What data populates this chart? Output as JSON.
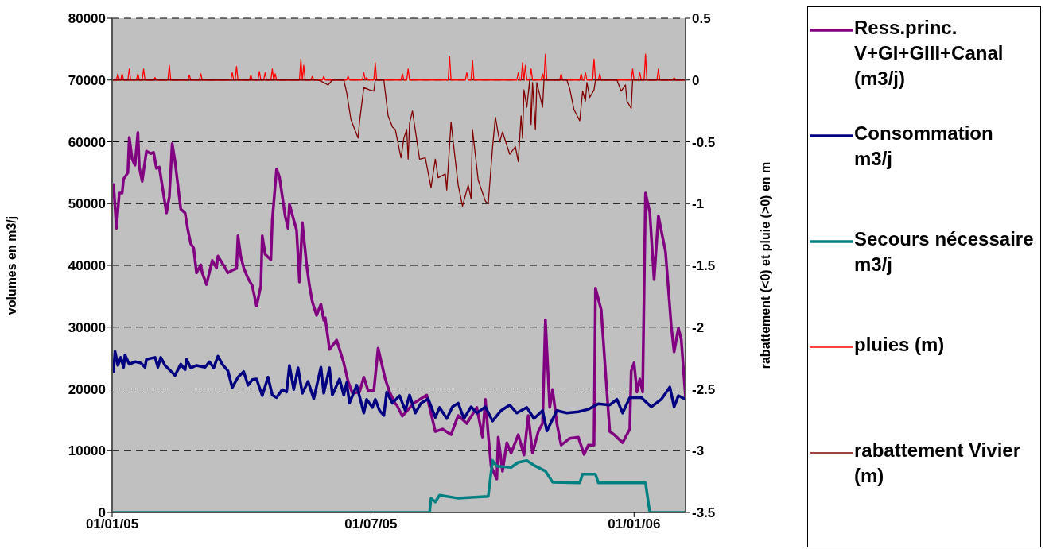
{
  "chart_data": {
    "type": "line",
    "xlim": [
      "2005-01-01",
      "2006-02-06"
    ],
    "xticks": [
      {
        "value": "2005-01-01",
        "label": "01/01/05"
      },
      {
        "value": "2005-07-01",
        "label": "01/07/05"
      },
      {
        "value": "2006-01-01",
        "label": "01/01/06"
      }
    ],
    "ylim": [
      0,
      80000
    ],
    "yticks": [
      0,
      10000,
      20000,
      30000,
      40000,
      50000,
      60000,
      70000,
      80000
    ],
    "y2lim": [
      -3.5,
      0.5
    ],
    "y2ticks": [
      -3.5,
      -3,
      -2.5,
      -2,
      -1.5,
      -1,
      -0.5,
      0,
      0.5
    ],
    "ylabel": "volumes en m3/j",
    "y2label": "rabattement (<0) et pluie (>0) en m",
    "grid": "y",
    "legend": "right",
    "series": [
      {
        "name": "Ress.princ. V+GI+GIII+Canal (m3/j)",
        "color": "#800080",
        "x": [
          "2005-01-02",
          "2005-01-04",
          "2005-01-06",
          "2005-01-08",
          "2005-01-09",
          "2005-01-12",
          "2005-01-13",
          "2005-01-15",
          "2005-01-17",
          "2005-01-19",
          "2005-01-20",
          "2005-01-22",
          "2005-01-25",
          "2005-01-28",
          "2005-01-30",
          "2005-02-01",
          "2005-02-03",
          "2005-02-08",
          "2005-02-10",
          "2005-02-12",
          "2005-02-14",
          "2005-02-18",
          "2005-02-21",
          "2005-02-23",
          "2005-02-25",
          "2005-02-27",
          "2005-03-01",
          "2005-03-04",
          "2005-03-05",
          "2005-03-08",
          "2005-03-12",
          "2005-03-15",
          "2005-03-16",
          "2005-03-21",
          "2005-03-23",
          "2005-03-26",
          "2005-03-29",
          "2005-03-30",
          "2005-04-01",
          "2005-04-03",
          "2005-04-06",
          "2005-04-09",
          "2005-04-12",
          "2005-04-15",
          "2005-04-16",
          "2005-04-18",
          "2005-04-22",
          "2005-04-23",
          "2005-04-26",
          "2005-04-28",
          "2005-05-02",
          "2005-05-04",
          "2005-05-05",
          "2005-05-07",
          "2005-05-10",
          "2005-05-12",
          "2005-05-14",
          "2005-05-17",
          "2005-05-19",
          "2005-05-21",
          "2005-05-24",
          "2005-05-27",
          "2005-05-29",
          "2005-05-30",
          "2005-06-02",
          "2005-06-07",
          "2005-06-12",
          "2005-06-15",
          "2005-06-18",
          "2005-06-23",
          "2005-06-26",
          "2005-06-29",
          "2005-07-03",
          "2005-07-06",
          "2005-07-11",
          "2005-07-14",
          "2005-07-18",
          "2005-07-19",
          "2005-07-23",
          "2005-07-31",
          "2005-08-09",
          "2005-08-15",
          "2005-08-20",
          "2005-08-26",
          "2005-08-31",
          "2005-09-06",
          "2005-09-13",
          "2005-09-17",
          "2005-09-19",
          "2005-09-21",
          "2005-09-23",
          "2005-09-27",
          "2005-09-28",
          "2005-10-01",
          "2005-10-04",
          "2005-10-07",
          "2005-10-12",
          "2005-10-16",
          "2005-10-19",
          "2005-10-22",
          "2005-10-26",
          "2005-10-29",
          "2005-10-31",
          "2005-11-03",
          "2005-11-05",
          "2005-11-08",
          "2005-11-11",
          "2005-11-17",
          "2005-11-23",
          "2005-11-27",
          "2005-11-30",
          "2005-12-04",
          "2005-12-05",
          "2005-12-09",
          "2005-12-13",
          "2005-12-15",
          "2005-12-18",
          "2005-12-24",
          "2005-12-29",
          "2005-12-30",
          "2006-01-01",
          "2006-01-03",
          "2006-01-05",
          "2006-01-07",
          "2006-01-09",
          "2006-01-12",
          "2006-01-15",
          "2006-01-18",
          "2006-01-23",
          "2006-01-27",
          "2006-01-29",
          "2006-02-01",
          "2006-02-03",
          "2006-02-06"
        ],
        "values": [
          53100,
          46000,
          51700,
          51700,
          54000,
          55000,
          60700,
          57200,
          56200,
          61500,
          55900,
          53600,
          58500,
          58100,
          58300,
          55700,
          55900,
          48500,
          51100,
          59700,
          56800,
          49100,
          48500,
          45700,
          43500,
          42800,
          38800,
          40100,
          38800,
          36900,
          40800,
          39600,
          41500,
          39600,
          38800,
          39200,
          39500,
          44800,
          41400,
          39600,
          37900,
          36700,
          33400,
          36700,
          44800,
          41800,
          40900,
          47300,
          55600,
          54300,
          48000,
          46000,
          49900,
          48200,
          45700,
          37300,
          46900,
          40100,
          36700,
          34100,
          31900,
          33700,
          31100,
          31500,
          26400,
          27900,
          24200,
          21200,
          19300,
          19500,
          21900,
          19700,
          19700,
          26600,
          21600,
          19500,
          17600,
          17400,
          15600,
          17700,
          19000,
          13100,
          13500,
          12600,
          15700,
          14400,
          17000,
          12200,
          18300,
          12600,
          7500,
          5400,
          12200,
          6700,
          11300,
          9600,
          12600,
          9300,
          15700,
          9600,
          13100,
          14400,
          31200,
          17000,
          19900,
          14400,
          10900,
          12000,
          12200,
          9400,
          10900,
          10900,
          36300,
          32800,
          19500,
          13100,
          12600,
          11300,
          13500,
          22900,
          24200,
          19500,
          21600,
          19500,
          51700,
          48600,
          37700,
          48000,
          42200,
          30200,
          26000,
          29800,
          28000,
          18600
        ]
      },
      {
        "name": "Consommation m3/j",
        "color": "#000080",
        "x": [
          "2005-01-02",
          "2005-01-03",
          "2005-01-05",
          "2005-01-07",
          "2005-01-09",
          "2005-01-10",
          "2005-01-13",
          "2005-01-17",
          "2005-01-21",
          "2005-01-24",
          "2005-01-25",
          "2005-01-31",
          "2005-02-02",
          "2005-02-04",
          "2005-02-07",
          "2005-02-11",
          "2005-02-14",
          "2005-02-18",
          "2005-02-21",
          "2005-02-22",
          "2005-02-25",
          "2005-03-01",
          "2005-03-07",
          "2005-03-10",
          "2005-03-13",
          "2005-03-16",
          "2005-03-19",
          "2005-03-23",
          "2005-03-26",
          "2005-03-30",
          "2005-04-03",
          "2005-04-06",
          "2005-04-09",
          "2005-04-12",
          "2005-04-16",
          "2005-04-20",
          "2005-04-23",
          "2005-04-26",
          "2005-04-30",
          "2005-05-03",
          "2005-05-05",
          "2005-05-08",
          "2005-05-11",
          "2005-05-14",
          "2005-05-18",
          "2005-05-22",
          "2005-05-27",
          "2005-05-29",
          "2005-06-02",
          "2005-06-04",
          "2005-06-09",
          "2005-06-12",
          "2005-06-14",
          "2005-06-16",
          "2005-06-21",
          "2005-06-26",
          "2005-06-28",
          "2005-07-02",
          "2005-07-04",
          "2005-07-07",
          "2005-07-10",
          "2005-07-12",
          "2005-07-16",
          "2005-07-21",
          "2005-07-25",
          "2005-07-28",
          "2005-08-01",
          "2005-08-05",
          "2005-08-10",
          "2005-08-15",
          "2005-08-18",
          "2005-08-23",
          "2005-08-27",
          "2005-08-31",
          "2005-09-04",
          "2005-09-09",
          "2005-09-13",
          "2005-09-19",
          "2005-09-24",
          "2005-09-30",
          "2005-10-06",
          "2005-10-11",
          "2005-10-18",
          "2005-10-23",
          "2005-10-29",
          "2005-11-01",
          "2005-11-08",
          "2005-11-15",
          "2005-11-23",
          "2005-11-30",
          "2005-12-07",
          "2005-12-15",
          "2005-12-20",
          "2005-12-24",
          "2005-12-29",
          "2006-01-06",
          "2006-01-13",
          "2006-01-20",
          "2006-01-26",
          "2006-01-29",
          "2006-02-01",
          "2006-02-06"
        ],
        "values": [
          22800,
          26100,
          23800,
          25100,
          23500,
          25500,
          24000,
          24400,
          24200,
          23500,
          24800,
          25100,
          23500,
          25100,
          23800,
          22900,
          22200,
          24000,
          23100,
          24800,
          23400,
          23800,
          23500,
          24400,
          23400,
          25300,
          24000,
          22900,
          20200,
          21900,
          22800,
          20600,
          21500,
          21600,
          18900,
          21900,
          19000,
          18600,
          19900,
          19500,
          23800,
          19900,
          23400,
          19300,
          21200,
          18400,
          23500,
          19300,
          23400,
          19000,
          21600,
          19000,
          21000,
          17700,
          20600,
          16100,
          18300,
          17000,
          18300,
          16500,
          15700,
          19500,
          17700,
          18900,
          16500,
          19000,
          16100,
          17700,
          18400,
          15400,
          17000,
          15200,
          17100,
          17700,
          15200,
          17100,
          16100,
          17100,
          14800,
          16500,
          17400,
          16100,
          17000,
          15200,
          16500,
          13200,
          16500,
          16100,
          16300,
          16700,
          17600,
          17400,
          18300,
          16100,
          18600,
          18600,
          17100,
          18300,
          20300,
          17100,
          18900,
          18300
        ]
      },
      {
        "name": "Secours nécessaire m3/j",
        "color": "#008080",
        "x": [
          "2005-01-01",
          "2005-08-11",
          "2005-08-12",
          "2005-08-15",
          "2005-08-18",
          "2005-08-31",
          "2005-09-21",
          "2005-09-24",
          "2005-09-27",
          "2005-10-07",
          "2005-10-12",
          "2005-10-18",
          "2005-10-24",
          "2005-10-31",
          "2005-11-05",
          "2005-11-24",
          "2005-11-26",
          "2005-12-05",
          "2005-12-07",
          "2006-01-09",
          "2006-01-12",
          "2006-02-06"
        ],
        "values": [
          0,
          0,
          2300,
          1700,
          2800,
          2300,
          2600,
          8400,
          7500,
          7300,
          8100,
          8400,
          7500,
          6700,
          4900,
          4800,
          6200,
          6200,
          4800,
          4800,
          0,
          0
        ]
      },
      {
        "name": "pluies (m)",
        "color": "#ff0000",
        "axis": "y2",
        "x": [
          "2005-01-01",
          "2005-01-04",
          "2005-01-05",
          "2005-01-06",
          "2005-01-07",
          "2005-01-08",
          "2005-01-09",
          "2005-01-12",
          "2005-01-13",
          "2005-01-14",
          "2005-01-18",
          "2005-01-19",
          "2005-01-20",
          "2005-01-22",
          "2005-01-23",
          "2005-01-24",
          "2005-01-30",
          "2005-01-31",
          "2005-02-01",
          "2005-02-09",
          "2005-02-10",
          "2005-02-11",
          "2005-02-23",
          "2005-02-24",
          "2005-02-25",
          "2005-03-03",
          "2005-03-04",
          "2005-03-05",
          "2005-03-25",
          "2005-03-26",
          "2005-03-27",
          "2005-03-28",
          "2005-03-29",
          "2005-03-30",
          "2005-04-07",
          "2005-04-08",
          "2005-04-09",
          "2005-04-13",
          "2005-04-14",
          "2005-04-15",
          "2005-04-17",
          "2005-04-18",
          "2005-04-19",
          "2005-04-22",
          "2005-04-23",
          "2005-04-24",
          "2005-04-25",
          "2005-04-26",
          "2005-05-12",
          "2005-05-13",
          "2005-05-14",
          "2005-05-15",
          "2005-05-16",
          "2005-05-20",
          "2005-05-21",
          "2005-05-22",
          "2005-05-28",
          "2005-05-29",
          "2005-05-30",
          "2005-06-14",
          "2005-06-15",
          "2005-06-16",
          "2005-06-25",
          "2005-06-26",
          "2005-06-27",
          "2005-06-28",
          "2005-06-29",
          "2005-07-03",
          "2005-07-04",
          "2005-07-05",
          "2005-07-22",
          "2005-07-23",
          "2005-07-24",
          "2005-07-26",
          "2005-07-27",
          "2005-07-28",
          "2005-08-24",
          "2005-08-25",
          "2005-08-26",
          "2005-09-05",
          "2005-09-06",
          "2005-09-07",
          "2005-09-09",
          "2005-09-10",
          "2005-09-11",
          "2005-10-11",
          "2005-10-12",
          "2005-10-13",
          "2005-10-14",
          "2005-10-15",
          "2005-10-16",
          "2005-10-17",
          "2005-10-18",
          "2005-10-20",
          "2005-10-21",
          "2005-10-22",
          "2005-10-28",
          "2005-10-29",
          "2005-10-30",
          "2005-10-31",
          "2005-11-01",
          "2005-11-10",
          "2005-11-11",
          "2005-11-12",
          "2005-11-24",
          "2005-11-25",
          "2005-11-26",
          "2005-11-27",
          "2005-11-28",
          "2005-11-29",
          "2005-12-03",
          "2005-12-04",
          "2005-12-05",
          "2005-12-07",
          "2005-12-08",
          "2005-12-09",
          "2005-12-30",
          "2005-12-31",
          "2006-01-01",
          "2006-01-04",
          "2006-01-05",
          "2006-01-06",
          "2006-01-08",
          "2006-01-09",
          "2006-01-10",
          "2006-01-17",
          "2006-01-18",
          "2006-01-19",
          "2006-01-28",
          "2006-01-29",
          "2006-01-30",
          "2006-02-06"
        ],
        "values": [
          0,
          0,
          0.05,
          0,
          0,
          0.05,
          0,
          0,
          0.09,
          0,
          0,
          0.05,
          0,
          0,
          0.09,
          0,
          0,
          0.02,
          0,
          0,
          0.12,
          0,
          0,
          0.04,
          0,
          0,
          0.05,
          0,
          0,
          0.06,
          0,
          0,
          0.11,
          0,
          0,
          0.04,
          0,
          0,
          0.07,
          0,
          0,
          0.06,
          0,
          0,
          0.09,
          0,
          0.05,
          0,
          0,
          0.17,
          0,
          0.12,
          0,
          0,
          0.03,
          0,
          0,
          0.03,
          0,
          0,
          0.03,
          0,
          0,
          0.06,
          0,
          0.02,
          0,
          0,
          0.14,
          0,
          0,
          0.05,
          0,
          0,
          0.09,
          0,
          0,
          0.19,
          0,
          0,
          0.06,
          0,
          0,
          0.16,
          0,
          0,
          0.06,
          0,
          0,
          0.14,
          0,
          0.12,
          0,
          0,
          0.09,
          0,
          0,
          0.05,
          0,
          0.21,
          0,
          0,
          0.05,
          0,
          0,
          0.05,
          0,
          0,
          0.06,
          0,
          0,
          0.17,
          0,
          0,
          0.05,
          0,
          0,
          0.09,
          0,
          0,
          0.06,
          0,
          0,
          0.21,
          0,
          0,
          0.09,
          0,
          0,
          0.02,
          0,
          0
        ]
      },
      {
        "name": "rabattement Vivier (m)",
        "color": "#800000",
        "axis": "y2",
        "x": [
          "2005-01-01",
          "2005-05-25",
          "2005-05-29",
          "2005-06-01",
          "2005-06-04",
          "2005-06-12",
          "2005-06-14",
          "2005-06-17",
          "2005-06-22",
          "2005-06-23",
          "2005-06-26",
          "2005-06-30",
          "2005-07-03",
          "2005-07-04",
          "2005-07-10",
          "2005-07-13",
          "2005-07-16",
          "2005-07-18",
          "2005-07-22",
          "2005-07-24",
          "2005-07-26",
          "2005-07-27",
          "2005-07-28",
          "2005-07-30",
          "2005-08-04",
          "2005-08-08",
          "2005-08-12",
          "2005-08-15",
          "2005-08-17",
          "2005-08-22",
          "2005-08-23",
          "2005-08-26",
          "2005-08-28",
          "2005-08-31",
          "2005-09-03",
          "2005-09-07",
          "2005-09-09",
          "2005-09-10",
          "2005-09-14",
          "2005-09-19",
          "2005-09-21",
          "2005-09-24",
          "2005-09-26",
          "2005-09-29",
          "2005-10-01",
          "2005-10-06",
          "2005-10-10",
          "2005-10-12",
          "2005-10-14",
          "2005-10-15",
          "2005-10-16",
          "2005-10-18",
          "2005-10-20",
          "2005-10-21",
          "2005-10-22",
          "2005-10-24",
          "2005-10-25",
          "2005-10-29",
          "2005-10-30",
          "2005-11-15",
          "2005-11-17",
          "2005-11-20",
          "2005-11-24",
          "2005-11-26",
          "2005-11-28",
          "2005-11-29",
          "2005-12-01",
          "2005-12-04",
          "2005-12-05",
          "2005-12-20",
          "2005-12-23",
          "2005-12-26",
          "2005-12-27",
          "2005-12-30",
          "2005-12-31",
          "2006-02-06"
        ],
        "values": [
          0,
          0,
          -0.02,
          -0.04,
          0,
          0,
          -0.1,
          -0.32,
          -0.47,
          -0.34,
          -0.06,
          -0.08,
          -0.09,
          0,
          0,
          -0.29,
          -0.38,
          -0.4,
          -0.63,
          -0.47,
          -0.4,
          -0.64,
          -0.35,
          -0.25,
          -0.64,
          -0.63,
          -0.87,
          -0.64,
          -0.79,
          -0.76,
          -0.89,
          -0.34,
          -0.55,
          -0.85,
          -1.02,
          -0.85,
          -0.96,
          -0.4,
          -0.81,
          -0.98,
          -1,
          -0.55,
          -0.3,
          -0.5,
          -0.42,
          -0.6,
          -0.54,
          -0.66,
          -0.29,
          -0.47,
          -0.08,
          -0.22,
          0,
          -0.36,
          -0.02,
          -0.4,
          -0.02,
          -0.22,
          0,
          0,
          -0.07,
          -0.24,
          -0.33,
          -0.09,
          -0.17,
          -0.02,
          -0.14,
          -0.08,
          0,
          0,
          -0.09,
          -0.04,
          -0.17,
          -0.23,
          0,
          0
        ]
      }
    ]
  }
}
